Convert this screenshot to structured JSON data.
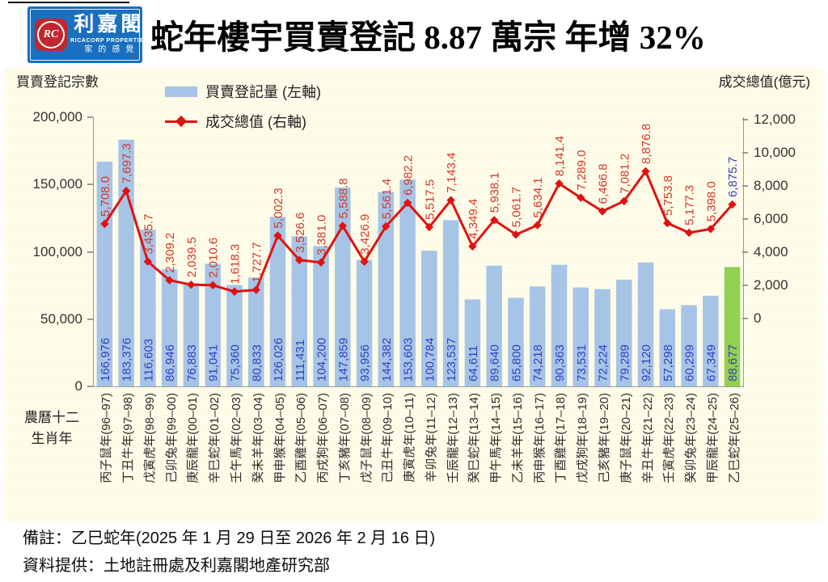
{
  "header": {
    "logo": {
      "monogram": "RC",
      "name_zh": "利嘉閣",
      "name_en": "RICACORP PROPERTIES",
      "tagline": "家的感覺"
    },
    "title": "蛇年樓宇買賣登記 8.87 萬宗  年增 32%"
  },
  "chart_data": {
    "type": "bar+line",
    "left_axis": {
      "title": "買賣登記宗數",
      "min": 0,
      "max": 200000,
      "ticks": [
        "200,000",
        "150,000",
        "100,000",
        "50,000",
        "0"
      ]
    },
    "right_axis": {
      "title": "成交總值(億元)",
      "min": 0,
      "max": 12000,
      "ticks": [
        "12,000",
        "10,000",
        "8,000",
        "6,000",
        "4,000",
        "2,000",
        "0"
      ],
      "zero_aligned_with_left_value": 50000
    },
    "x_axis_name_lines": [
      "農曆十二",
      "生肖年"
    ],
    "legend": [
      {
        "label": "買賣登記量 (左軸)",
        "type": "bar",
        "color": "#a6c4e6"
      },
      {
        "label": "成交總值 (右軸)",
        "type": "line",
        "color": "#e01212"
      }
    ],
    "legend_position": "top-left-inside",
    "grid": "fine-horizontal-stripes",
    "categories": [
      "丙子鼠年(96–97)",
      "丁丑牛年(97–98)",
      "戊寅虎年(98–99)",
      "己卯兔年(99–00)",
      "庚辰龍年(00–01)",
      "辛巳蛇年(01–02)",
      "壬午馬年(02–03)",
      "癸未羊年(03–04)",
      "甲申猴年(04–05)",
      "乙酉雞年(05–06)",
      "丙戌狗年(06–07)",
      "丁亥豬年(07–08)",
      "戊子鼠年(08–09)",
      "己丑牛年(09–10)",
      "庚寅虎年(10–11)",
      "辛卯兔年(11–12)",
      "壬辰龍年(12–13)",
      "癸巳蛇年(13–14)",
      "甲午馬年(14–15)",
      "乙未羊年(15–16)",
      "丙申猴年(16–17)",
      "丁酉雞年(17–18)",
      "戊戌狗年(18–19)",
      "己亥豬年(19–20)",
      "庚子鼠年(20–21)",
      "辛丑牛年(21–22)",
      "壬寅虎年(22–23)",
      "癸卯兔年(23–24)",
      "甲辰龍年(24–25)",
      "乙巳蛇年(25–26)"
    ],
    "series": [
      {
        "name": "買賣登記量 (左軸)",
        "axis": "left",
        "type": "bar",
        "values": [
          166976,
          183376,
          116603,
          86946,
          76883,
          91041,
          75360,
          80833,
          126026,
          111431,
          104200,
          147859,
          93956,
          144382,
          153603,
          100784,
          123537,
          64611,
          89640,
          65800,
          74218,
          90363,
          73531,
          72224,
          79289,
          92120,
          57298,
          60299,
          67349,
          88677
        ]
      },
      {
        "name": "成交總值 (右軸)",
        "axis": "right",
        "type": "line",
        "values": [
          5708.0,
          7697.3,
          3435.7,
          2309.2,
          2039.5,
          2010.6,
          1618.3,
          1727.7,
          5002.3,
          3526.6,
          3381.0,
          5588.8,
          3426.9,
          5561.4,
          6982.2,
          5517.5,
          7143.4,
          4349.4,
          5938.1,
          5061.7,
          5634.1,
          8141.4,
          7289.0,
          6466.8,
          7081.2,
          8876.8,
          5753.8,
          5177.3,
          5398.0,
          6875.7
        ]
      }
    ],
    "highlight_index": 29,
    "colors": {
      "bar": "#a6c4e6",
      "bar_highlight": "#92d050",
      "line": "#e01212",
      "bar_label": "#2f3fc2",
      "line_label": "#d5362a",
      "line_label_highlight": "#2f3fc2"
    }
  },
  "notes": [
    "備註：乙巳蛇年(2025 年 1 月 29 日至 2026 年 2 月 16 日)",
    "資料提供：土地註冊處及利嘉閣地產研究部"
  ]
}
